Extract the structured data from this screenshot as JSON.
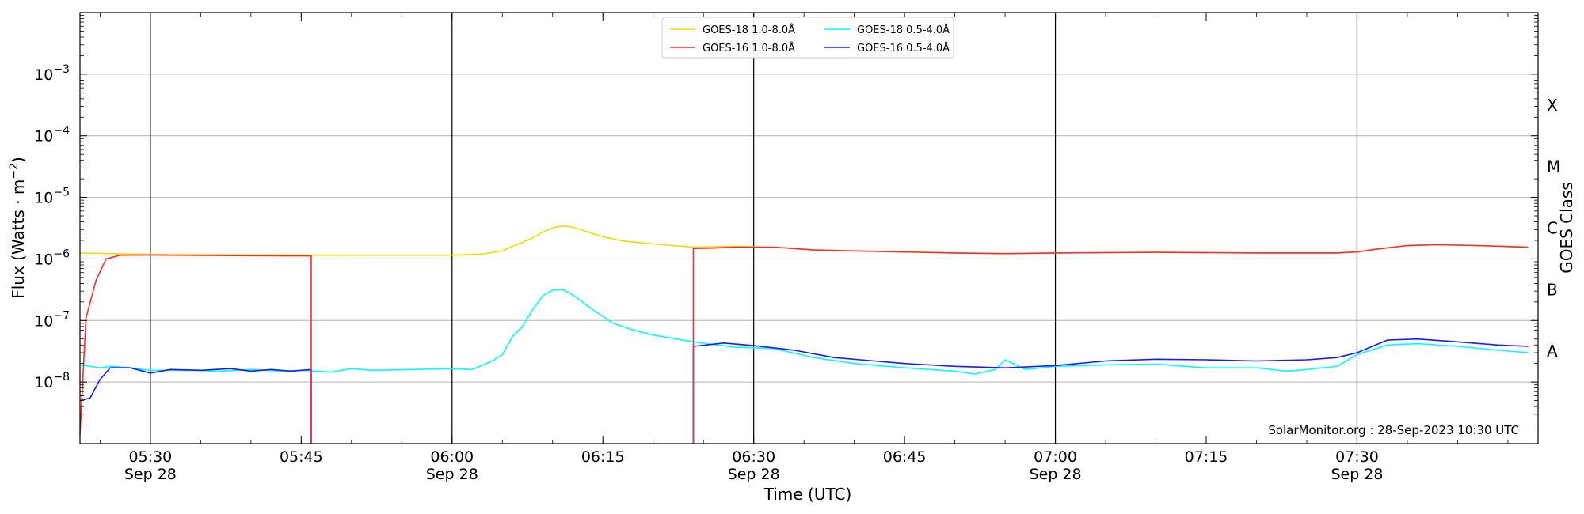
{
  "chart_data": {
    "type": "line",
    "xlabel": "Time (UTC)",
    "ylabel_base": "Flux (Watts · m",
    "ylabel_sup": "−2",
    "ylabel_close": ")",
    "right_label": "GOES Class",
    "credit": "SolarMonitor.org : 28-Sep-2023 10:30 UTC",
    "x_start": "05:23",
    "x_end": "07:48",
    "ylim": [
      "1e-9",
      "1e-2"
    ],
    "y_scale": "log",
    "y_ticks": [
      {
        "value": 1e-08,
        "exp": "−8"
      },
      {
        "value": 1e-07,
        "exp": "−7"
      },
      {
        "value": 1e-06,
        "exp": "−6"
      },
      {
        "value": 1e-05,
        "exp": "−5"
      },
      {
        "value": 0.0001,
        "exp": "−4"
      },
      {
        "value": 0.001,
        "exp": "−3"
      }
    ],
    "y_tick_base": "10",
    "x_ticks": [
      {
        "time": "05:30",
        "label": "05:30",
        "date": "Sep 28",
        "vline": true
      },
      {
        "time": "05:45",
        "label": "05:45",
        "date": "",
        "vline": false
      },
      {
        "time": "06:00",
        "label": "06:00",
        "date": "Sep 28",
        "vline": true
      },
      {
        "time": "06:15",
        "label": "06:15",
        "date": "",
        "vline": false
      },
      {
        "time": "06:30",
        "label": "06:30",
        "date": "Sep 28",
        "vline": true
      },
      {
        "time": "06:45",
        "label": "06:45",
        "date": "",
        "vline": false
      },
      {
        "time": "07:00",
        "label": "07:00",
        "date": "Sep 28",
        "vline": true
      },
      {
        "time": "07:15",
        "label": "07:15",
        "date": "",
        "vline": false
      },
      {
        "time": "07:30",
        "label": "07:30",
        "date": "Sep 28",
        "vline": true
      }
    ],
    "goes_classes": [
      {
        "label": "A",
        "value": 3.16e-08
      },
      {
        "label": "B",
        "value": 3.16e-07
      },
      {
        "label": "C",
        "value": 3.16e-06
      },
      {
        "label": "M",
        "value": 3.16e-05
      },
      {
        "label": "X",
        "value": 0.000316
      }
    ],
    "grid": "horizontal at decades",
    "legend_position": "top-center",
    "series": [
      {
        "name": "GOES-18 1.0-8.0Å",
        "color": "#ffd700",
        "segments": [
          [
            [
              "05:23",
              1.25e-06
            ],
            [
              "05:30",
              1.18e-06
            ],
            [
              "05:40",
              1.16e-06
            ],
            [
              "05:50",
              1.15e-06
            ],
            [
              "06:00",
              1.15e-06
            ],
            [
              "06:03",
              1.2e-06
            ],
            [
              "06:05",
              1.35e-06
            ],
            [
              "06:06",
              1.6e-06
            ],
            [
              "06:07",
              1.85e-06
            ],
            [
              "06:08",
              2.2e-06
            ],
            [
              "06:09",
              2.7e-06
            ],
            [
              "06:10",
              3.2e-06
            ],
            [
              "06:11",
              3.45e-06
            ],
            [
              "06:12",
              3.3e-06
            ],
            [
              "06:13",
              2.9e-06
            ],
            [
              "06:15",
              2.3e-06
            ],
            [
              "06:17",
              1.95e-06
            ],
            [
              "06:20",
              1.75e-06
            ],
            [
              "06:24",
              1.55e-06
            ],
            [
              "06:28",
              1.6e-06
            ],
            [
              "06:32",
              1.55e-06
            ],
            [
              "06:36",
              1.4e-06
            ],
            [
              "06:40",
              1.35e-06
            ],
            [
              "06:45",
              1.3e-06
            ],
            [
              "06:50",
              1.25e-06
            ],
            [
              "06:55",
              1.22e-06
            ],
            [
              "07:00",
              1.25e-06
            ],
            [
              "07:10",
              1.28e-06
            ],
            [
              "07:20",
              1.25e-06
            ],
            [
              "07:28",
              1.25e-06
            ],
            [
              "07:30",
              1.3e-06
            ],
            [
              "07:32",
              1.45e-06
            ],
            [
              "07:35",
              1.65e-06
            ],
            [
              "07:38",
              1.7e-06
            ],
            [
              "07:42",
              1.65e-06
            ],
            [
              "07:47",
              1.55e-06
            ]
          ]
        ]
      },
      {
        "name": "GOES-16 1.0-8.0Å",
        "color": "#ff2a2a",
        "segments": [
          [
            [
              "05:23",
              1.4e-09
            ],
            [
              "05:23.6",
              1.1e-07
            ],
            [
              "05:24.6",
              4.5e-07
            ],
            [
              "05:25.6",
              1e-06
            ],
            [
              "05:27",
              1.15e-06
            ],
            [
              "05:30",
              1.16e-06
            ],
            [
              "05:35",
              1.14e-06
            ],
            [
              "05:40",
              1.13e-06
            ],
            [
              "05:46",
              1.12e-06
            ],
            [
              "05:46",
              1e-09
            ]
          ],
          [
            [
              "06:24",
              1e-09
            ],
            [
              "06:24",
              1.48e-06
            ],
            [
              "06:26",
              1.5e-06
            ],
            [
              "06:28",
              1.55e-06
            ],
            [
              "06:32",
              1.55e-06
            ],
            [
              "06:36",
              1.4e-06
            ],
            [
              "06:40",
              1.35e-06
            ],
            [
              "06:45",
              1.3e-06
            ],
            [
              "06:50",
              1.25e-06
            ],
            [
              "06:55",
              1.22e-06
            ],
            [
              "07:00",
              1.25e-06
            ],
            [
              "07:10",
              1.28e-06
            ],
            [
              "07:20",
              1.25e-06
            ],
            [
              "07:28",
              1.25e-06
            ],
            [
              "07:30",
              1.3e-06
            ],
            [
              "07:32",
              1.45e-06
            ],
            [
              "07:35",
              1.65e-06
            ],
            [
              "07:38",
              1.7e-06
            ],
            [
              "07:42",
              1.65e-06
            ],
            [
              "07:47",
              1.55e-06
            ]
          ]
        ]
      },
      {
        "name": "GOES-18 0.5-4.0Å",
        "color": "#00ffff",
        "segments": [
          [
            [
              "05:23",
              1.9e-08
            ],
            [
              "05:25",
              1.7e-08
            ],
            [
              "05:26",
              1.8e-08
            ],
            [
              "05:28",
              1.7e-08
            ],
            [
              "05:30",
              1.55e-08
            ],
            [
              "05:33",
              1.55e-08
            ],
            [
              "05:37",
              1.5e-08
            ],
            [
              "05:40",
              1.6e-08
            ],
            [
              "05:43",
              1.5e-08
            ],
            [
              "05:45",
              1.55e-08
            ],
            [
              "05:48",
              1.45e-08
            ],
            [
              "05:50",
              1.65e-08
            ],
            [
              "05:52",
              1.55e-08
            ],
            [
              "05:56",
              1.6e-08
            ],
            [
              "06:00",
              1.65e-08
            ],
            [
              "06:02",
              1.6e-08
            ],
            [
              "06:04",
              2.2e-08
            ],
            [
              "06:05",
              2.8e-08
            ],
            [
              "06:06",
              5.5e-08
            ],
            [
              "06:07",
              8e-08
            ],
            [
              "06:08",
              1.5e-07
            ],
            [
              "06:09",
              2.5e-07
            ],
            [
              "06:10",
              3.1e-07
            ],
            [
              "06:11",
              3.2e-07
            ],
            [
              "06:12",
              2.6e-07
            ],
            [
              "06:14",
              1.5e-07
            ],
            [
              "06:16",
              9e-08
            ],
            [
              "06:18",
              7e-08
            ],
            [
              "06:20",
              5.8e-08
            ],
            [
              "06:24",
              4.5e-08
            ],
            [
              "06:28",
              3.7e-08
            ],
            [
              "06:32",
              3.5e-08
            ],
            [
              "06:36",
              2.5e-08
            ],
            [
              "06:40",
              2e-08
            ],
            [
              "06:45",
              1.7e-08
            ],
            [
              "06:50",
              1.5e-08
            ],
            [
              "06:52",
              1.35e-08
            ],
            [
              "06:54",
              1.6e-08
            ],
            [
              "06:55",
              2.3e-08
            ],
            [
              "06:57",
              1.6e-08
            ],
            [
              "07:00",
              1.8e-08
            ],
            [
              "07:05",
              1.9e-08
            ],
            [
              "07:10",
              1.95e-08
            ],
            [
              "07:15",
              1.7e-08
            ],
            [
              "07:20",
              1.7e-08
            ],
            [
              "07:23",
              1.5e-08
            ],
            [
              "07:25",
              1.6e-08
            ],
            [
              "07:28",
              1.8e-08
            ],
            [
              "07:30",
              2.8e-08
            ],
            [
              "07:33",
              4e-08
            ],
            [
              "07:36",
              4.2e-08
            ],
            [
              "07:40",
              3.8e-08
            ],
            [
              "07:44",
              3.3e-08
            ],
            [
              "07:47",
              3e-08
            ]
          ]
        ]
      },
      {
        "name": "GOES-16 0.5-4.0Å",
        "color": "#1a1aff",
        "segments": [
          [
            [
              "05:23",
              5e-09
            ],
            [
              "05:24",
              5.5e-09
            ],
            [
              "05:25",
              1.1e-08
            ],
            [
              "05:26",
              1.7e-08
            ],
            [
              "05:28",
              1.7e-08
            ],
            [
              "05:30",
              1.4e-08
            ],
            [
              "05:32",
              1.6e-08
            ],
            [
              "05:35",
              1.55e-08
            ],
            [
              "05:38",
              1.65e-08
            ],
            [
              "05:40",
              1.5e-08
            ],
            [
              "05:42",
              1.6e-08
            ],
            [
              "05:44",
              1.5e-08
            ],
            [
              "05:46",
              1.6e-08
            ],
            [
              "05:46",
              1e-09
            ]
          ],
          [
            [
              "06:24",
              1e-09
            ],
            [
              "06:24",
              3.8e-08
            ],
            [
              "06:27",
              4.3e-08
            ],
            [
              "06:30",
              3.9e-08
            ],
            [
              "06:34",
              3.3e-08
            ],
            [
              "06:38",
              2.5e-08
            ],
            [
              "06:42",
              2.2e-08
            ],
            [
              "06:45",
              2e-08
            ],
            [
              "06:50",
              1.8e-08
            ],
            [
              "06:55",
              1.7e-08
            ],
            [
              "07:00",
              1.85e-08
            ],
            [
              "07:05",
              2.2e-08
            ],
            [
              "07:10",
              2.35e-08
            ],
            [
              "07:15",
              2.3e-08
            ],
            [
              "07:20",
              2.2e-08
            ],
            [
              "07:25",
              2.3e-08
            ],
            [
              "07:28",
              2.5e-08
            ],
            [
              "07:30",
              3e-08
            ],
            [
              "07:33",
              4.8e-08
            ],
            [
              "07:36",
              5e-08
            ],
            [
              "07:40",
              4.5e-08
            ],
            [
              "07:44",
              4e-08
            ],
            [
              "07:47",
              3.8e-08
            ]
          ]
        ]
      }
    ]
  }
}
